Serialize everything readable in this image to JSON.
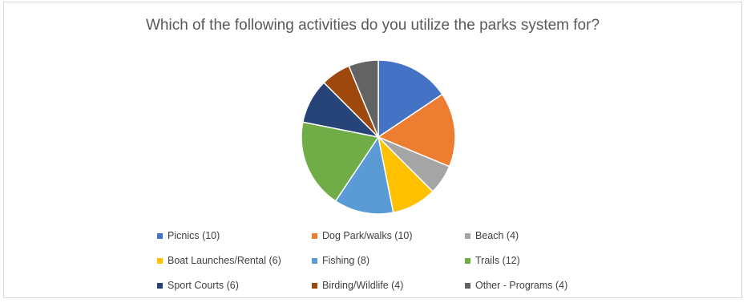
{
  "chart_data": {
    "type": "pie",
    "title": "Which of the following activities do you utilize the parks system for?",
    "slices": [
      {
        "label": "Picnics (10)",
        "value": 10,
        "color": "#4472C4"
      },
      {
        "label": "Dog Park/walks (10)",
        "value": 10,
        "color": "#ED7D31"
      },
      {
        "label": "Beach (4)",
        "value": 4,
        "color": "#A5A5A5"
      },
      {
        "label": "Boat Launches/Rental (6)",
        "value": 6,
        "color": "#FFC000"
      },
      {
        "label": "Fishing (8)",
        "value": 8,
        "color": "#5B9BD5"
      },
      {
        "label": "Trails (12)",
        "value": 12,
        "color": "#70AD47"
      },
      {
        "label": "Sport Courts (6)",
        "value": 6,
        "color": "#264478"
      },
      {
        "label": "Birding/Wildlife (4)",
        "value": 4,
        "color": "#9E480E"
      },
      {
        "label": "Other - Programs (4)",
        "value": 4,
        "color": "#636363"
      }
    ],
    "legend_position": "bottom"
  }
}
